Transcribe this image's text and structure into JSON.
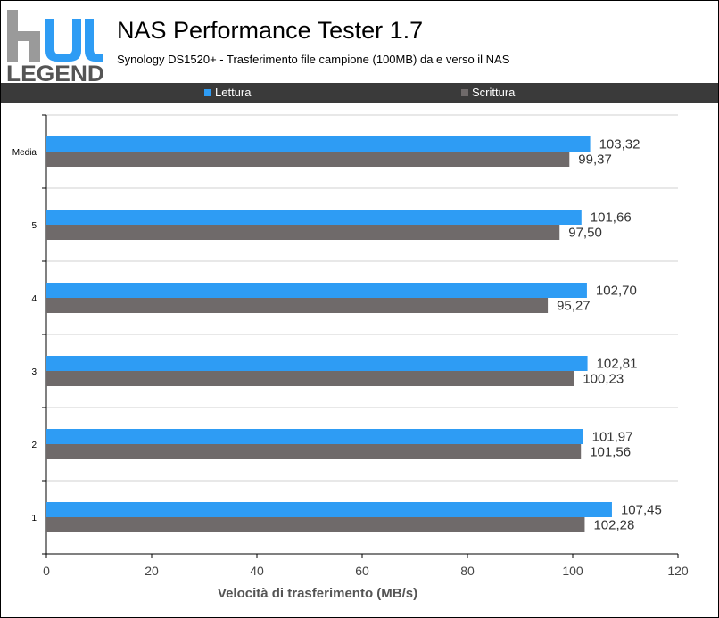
{
  "logo": {
    "mark_text": "hu",
    "brand_text": "LEGEND"
  },
  "header": {
    "title": "NAS Performance Tester 1.7",
    "subtitle": "Synology DS1520+ - Trasferimento file campione (100MB) da e verso il NAS"
  },
  "legend": {
    "items": [
      {
        "label": "Lettura",
        "color": "#2e9cf4"
      },
      {
        "label": "Scrittura",
        "color": "#6f6a6a"
      }
    ]
  },
  "chart_data": {
    "type": "bar",
    "orientation": "horizontal",
    "title": "NAS Performance Tester 1.7",
    "subtitle": "Synology DS1520+ - Trasferimento file campione (100MB) da e verso il NAS",
    "categories": [
      "1",
      "2",
      "3",
      "4",
      "5",
      "Media"
    ],
    "series": [
      {
        "name": "Lettura",
        "color": "#2e9cf4",
        "values": [
          107.45,
          101.97,
          102.81,
          102.7,
          101.66,
          103.32
        ],
        "labels": [
          "107,45",
          "101,97",
          "102,81",
          "102,70",
          "101,66",
          "103,32"
        ]
      },
      {
        "name": "Scrittura",
        "color": "#6f6a6a",
        "values": [
          102.28,
          101.56,
          100.23,
          95.27,
          97.5,
          99.37
        ],
        "labels": [
          "102,28",
          "101,56",
          "100,23",
          "95,27",
          "97,50",
          "99,37"
        ]
      }
    ],
    "xlabel": "Velocità di trasferimento (MB/s)",
    "ylabel": "",
    "xlim": [
      0,
      120
    ],
    "xticks": [
      0,
      20,
      40,
      60,
      80,
      100,
      120
    ],
    "grid": "horizontal",
    "legend_position": "top"
  }
}
